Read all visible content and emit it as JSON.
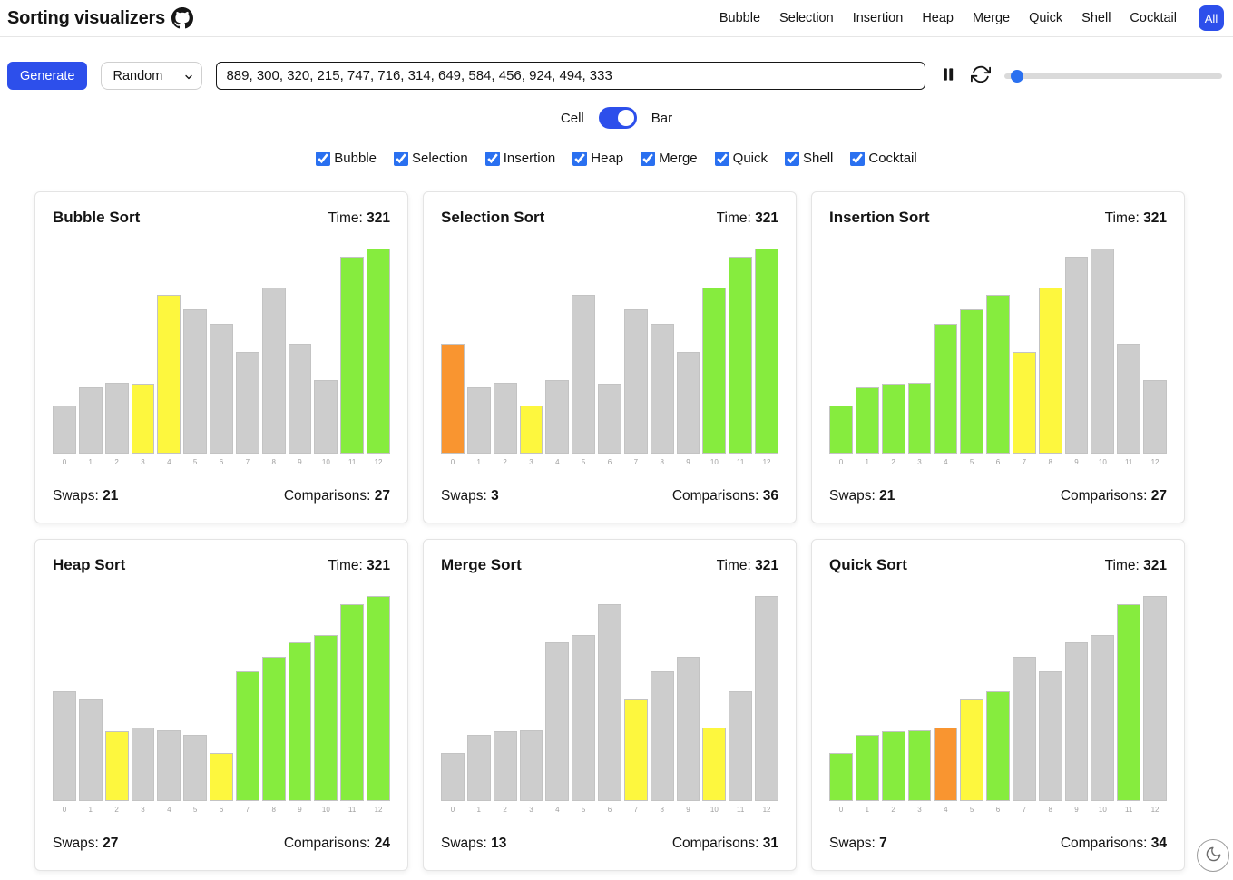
{
  "header": {
    "title": "Sorting visualizers",
    "nav": [
      "Bubble",
      "Selection",
      "Insertion",
      "Heap",
      "Merge",
      "Quick",
      "Shell",
      "Cocktail"
    ],
    "all_label": "All"
  },
  "toolbar": {
    "generate_label": "Generate",
    "mode_select": "Random",
    "array_input": "889, 300, 320, 215, 747, 716, 314, 649, 584, 456, 924, 494, 333",
    "slider_value": 3
  },
  "view_toggle": {
    "left": "Cell",
    "right": "Bar",
    "selected": "Bar"
  },
  "algorithm_filters": [
    {
      "label": "Bubble",
      "checked": true
    },
    {
      "label": "Selection",
      "checked": true
    },
    {
      "label": "Insertion",
      "checked": true
    },
    {
      "label": "Heap",
      "checked": true
    },
    {
      "label": "Merge",
      "checked": true
    },
    {
      "label": "Quick",
      "checked": true
    },
    {
      "label": "Shell",
      "checked": true
    },
    {
      "label": "Cocktail",
      "checked": true
    }
  ],
  "stats_labels": {
    "time": "Time:",
    "swaps": "Swaps:",
    "comparisons": "Comparisons:"
  },
  "colors": {
    "accent": "#2d4feb",
    "control_blue": "#2a70f0",
    "bar_states": {
      "default": "#cdcdcd",
      "sorted": "#86ec3e",
      "compare": "#fdf73e",
      "pivot": "#f99530"
    }
  },
  "chart_data": [
    {
      "type": "bar",
      "title": "Bubble Sort",
      "time": 321,
      "swaps": 21,
      "comparisons": 27,
      "categories": [
        0,
        1,
        2,
        3,
        4,
        5,
        6,
        7,
        8,
        9,
        10,
        11,
        12
      ],
      "values": [
        215,
        300,
        320,
        314,
        716,
        649,
        584,
        456,
        747,
        494,
        333,
        889,
        924
      ],
      "bar_states": [
        "default",
        "default",
        "default",
        "compare",
        "compare",
        "default",
        "default",
        "default",
        "default",
        "default",
        "default",
        "sorted",
        "sorted"
      ],
      "ylim": [
        0,
        924
      ]
    },
    {
      "type": "bar",
      "title": "Selection Sort",
      "time": 321,
      "swaps": 3,
      "comparisons": 36,
      "categories": [
        0,
        1,
        2,
        3,
        4,
        5,
        6,
        7,
        8,
        9,
        10,
        11,
        12
      ],
      "values": [
        494,
        300,
        320,
        215,
        333,
        716,
        314,
        649,
        584,
        456,
        747,
        889,
        924
      ],
      "bar_states": [
        "pivot",
        "default",
        "default",
        "compare",
        "default",
        "default",
        "default",
        "default",
        "default",
        "default",
        "sorted",
        "sorted",
        "sorted"
      ],
      "ylim": [
        0,
        924
      ]
    },
    {
      "type": "bar",
      "title": "Insertion Sort",
      "time": 321,
      "swaps": 21,
      "comparisons": 27,
      "categories": [
        0,
        1,
        2,
        3,
        4,
        5,
        6,
        7,
        8,
        9,
        10,
        11,
        12
      ],
      "values": [
        215,
        300,
        314,
        320,
        584,
        649,
        716,
        456,
        747,
        889,
        924,
        494,
        333
      ],
      "bar_states": [
        "sorted",
        "sorted",
        "sorted",
        "sorted",
        "sorted",
        "sorted",
        "sorted",
        "compare",
        "compare",
        "default",
        "default",
        "default",
        "default"
      ],
      "ylim": [
        0,
        924
      ]
    },
    {
      "type": "bar",
      "title": "Heap Sort",
      "time": 321,
      "swaps": 27,
      "comparisons": 24,
      "categories": [
        0,
        1,
        2,
        3,
        4,
        5,
        6,
        7,
        8,
        9,
        10,
        11,
        12
      ],
      "values": [
        494,
        456,
        314,
        333,
        320,
        300,
        215,
        584,
        649,
        716,
        747,
        889,
        924
      ],
      "bar_states": [
        "default",
        "default",
        "compare",
        "default",
        "default",
        "default",
        "compare",
        "sorted",
        "sorted",
        "sorted",
        "sorted",
        "sorted",
        "sorted"
      ],
      "ylim": [
        0,
        924
      ]
    },
    {
      "type": "bar",
      "title": "Merge Sort",
      "time": 321,
      "swaps": 13,
      "comparisons": 31,
      "categories": [
        0,
        1,
        2,
        3,
        4,
        5,
        6,
        7,
        8,
        9,
        10,
        11,
        12
      ],
      "values": [
        215,
        300,
        314,
        320,
        716,
        747,
        889,
        456,
        584,
        649,
        333,
        494,
        924
      ],
      "bar_states": [
        "default",
        "default",
        "default",
        "default",
        "default",
        "default",
        "default",
        "compare",
        "default",
        "default",
        "compare",
        "default",
        "default"
      ],
      "ylim": [
        0,
        924
      ]
    },
    {
      "type": "bar",
      "title": "Quick Sort",
      "time": 321,
      "swaps": 7,
      "comparisons": 34,
      "categories": [
        0,
        1,
        2,
        3,
        4,
        5,
        6,
        7,
        8,
        9,
        10,
        11,
        12
      ],
      "values": [
        215,
        300,
        314,
        320,
        333,
        456,
        494,
        649,
        584,
        716,
        747,
        889,
        924
      ],
      "bar_states": [
        "sorted",
        "sorted",
        "sorted",
        "sorted",
        "pivot",
        "compare",
        "sorted",
        "default",
        "default",
        "default",
        "default",
        "sorted",
        "default"
      ],
      "ylim": [
        0,
        924
      ]
    }
  ]
}
